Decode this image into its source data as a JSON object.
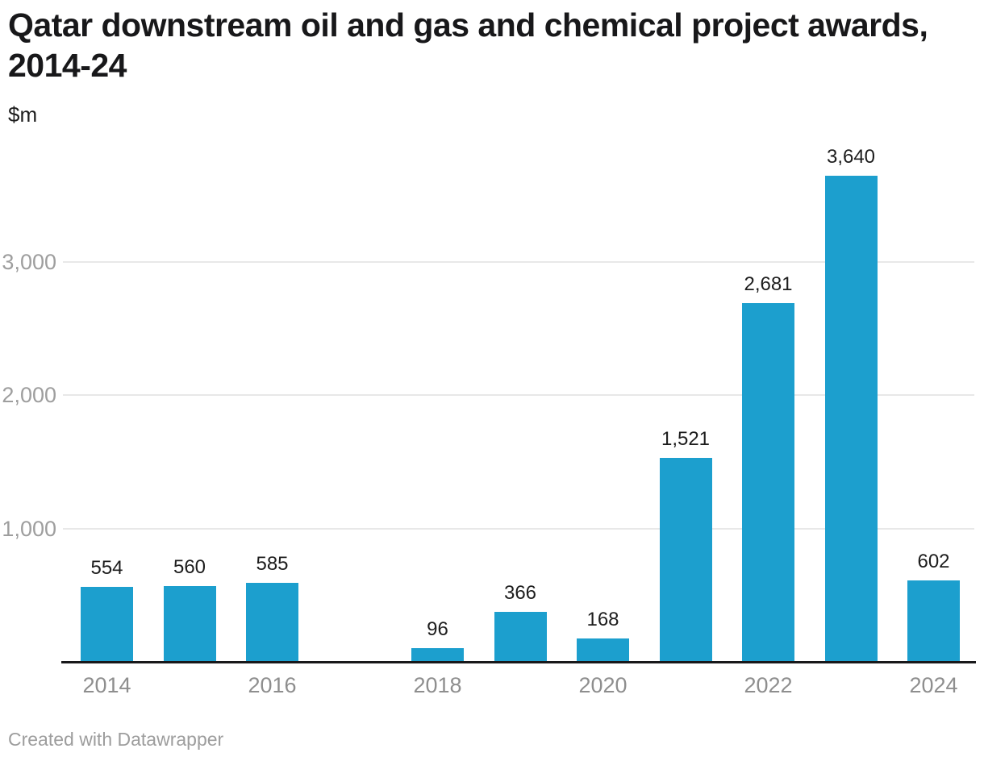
{
  "header": {
    "title_lines": {
      "0": "Qatar downstream oil and gas and chemical project awards,",
      "1": "2014-24"
    },
    "subtitle": "$m"
  },
  "footer": {
    "credit": "Created with Datawrapper"
  },
  "colors": {
    "bar": "#1C9FCE",
    "axis_line": "#18181a",
    "gridline": "#e8e8e8",
    "value_label": "#1d1d1d",
    "tick_label": "#8e8e8e",
    "title": "#18181a"
  },
  "chart_data": {
    "type": "bar",
    "title": "Qatar downstream oil and gas and chemical project awards, 2014-24",
    "subtitle": "$m",
    "xlabel": "",
    "ylabel": "$m",
    "categories": [
      "2014",
      "2015",
      "2016",
      "2017",
      "2018",
      "2019",
      "2020",
      "2021",
      "2022",
      "2023",
      "2024"
    ],
    "values": [
      554,
      560,
      585,
      null,
      96,
      366,
      168,
      1521,
      2681,
      3640,
      602
    ],
    "bar_labels": [
      "554",
      "560",
      "585",
      "",
      "96",
      "366",
      "168",
      "1,521",
      "2,681",
      "3,640",
      "602"
    ],
    "x_tick_labels": [
      "2014",
      "2016",
      "2018",
      "2020",
      "2022",
      "2024"
    ],
    "y_ticks": [
      {
        "value": 1000,
        "label": "1,000"
      },
      {
        "value": 2000,
        "label": "2,000"
      },
      {
        "value": 3000,
        "label": "3,000"
      }
    ],
    "ylim": [
      0,
      3880
    ],
    "grid": "horizontal gridlines at labeled y ticks",
    "legend": "none",
    "bar_color": "#1C9FCE",
    "missing_years": [
      "2017"
    ],
    "attribution": "Created with Datawrapper"
  }
}
